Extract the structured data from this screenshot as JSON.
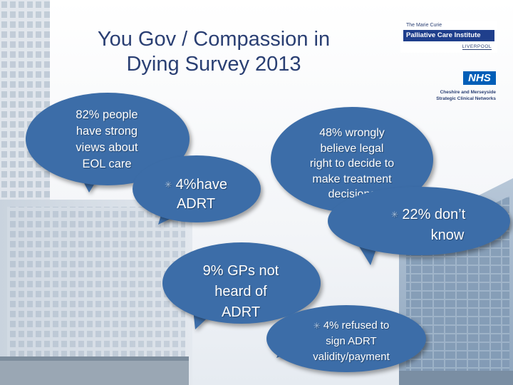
{
  "slide": {
    "title_line1": "You Gov / Compassion in",
    "title_line2": "Dying Survey 2013"
  },
  "logos": {
    "marie_curie_top": "The Marie Curie",
    "marie_curie_band": "Palliative Care Institute",
    "marie_curie_sub": "LIVERPOOL",
    "nhs": "NHS",
    "nhs_sub_line1": "Cheshire and Merseyside",
    "nhs_sub_line2": "Strategic Clinical Networks"
  },
  "bubbles": {
    "b1": {
      "lines": [
        "82% people",
        "have strong",
        "views about",
        "EOL care"
      ]
    },
    "b2": {
      "lines": [
        "4%have",
        "ADRT"
      ]
    },
    "b3": {
      "lines": [
        "48% wrongly",
        "believe legal",
        "right to decide to",
        "make treatment",
        "decisions"
      ]
    },
    "b4": {
      "lines": [
        "22% don’t",
        "know"
      ]
    },
    "b5": {
      "lines": [
        "9% GPs not",
        "heard of",
        "ADRT"
      ]
    },
    "b6": {
      "lines": [
        "4% refused to",
        "sign ADRT",
        "validity/payment"
      ]
    }
  },
  "colors": {
    "bubble": "#3c6da8",
    "title": "#2a3f73",
    "nhs_blue": "#005eb8"
  }
}
